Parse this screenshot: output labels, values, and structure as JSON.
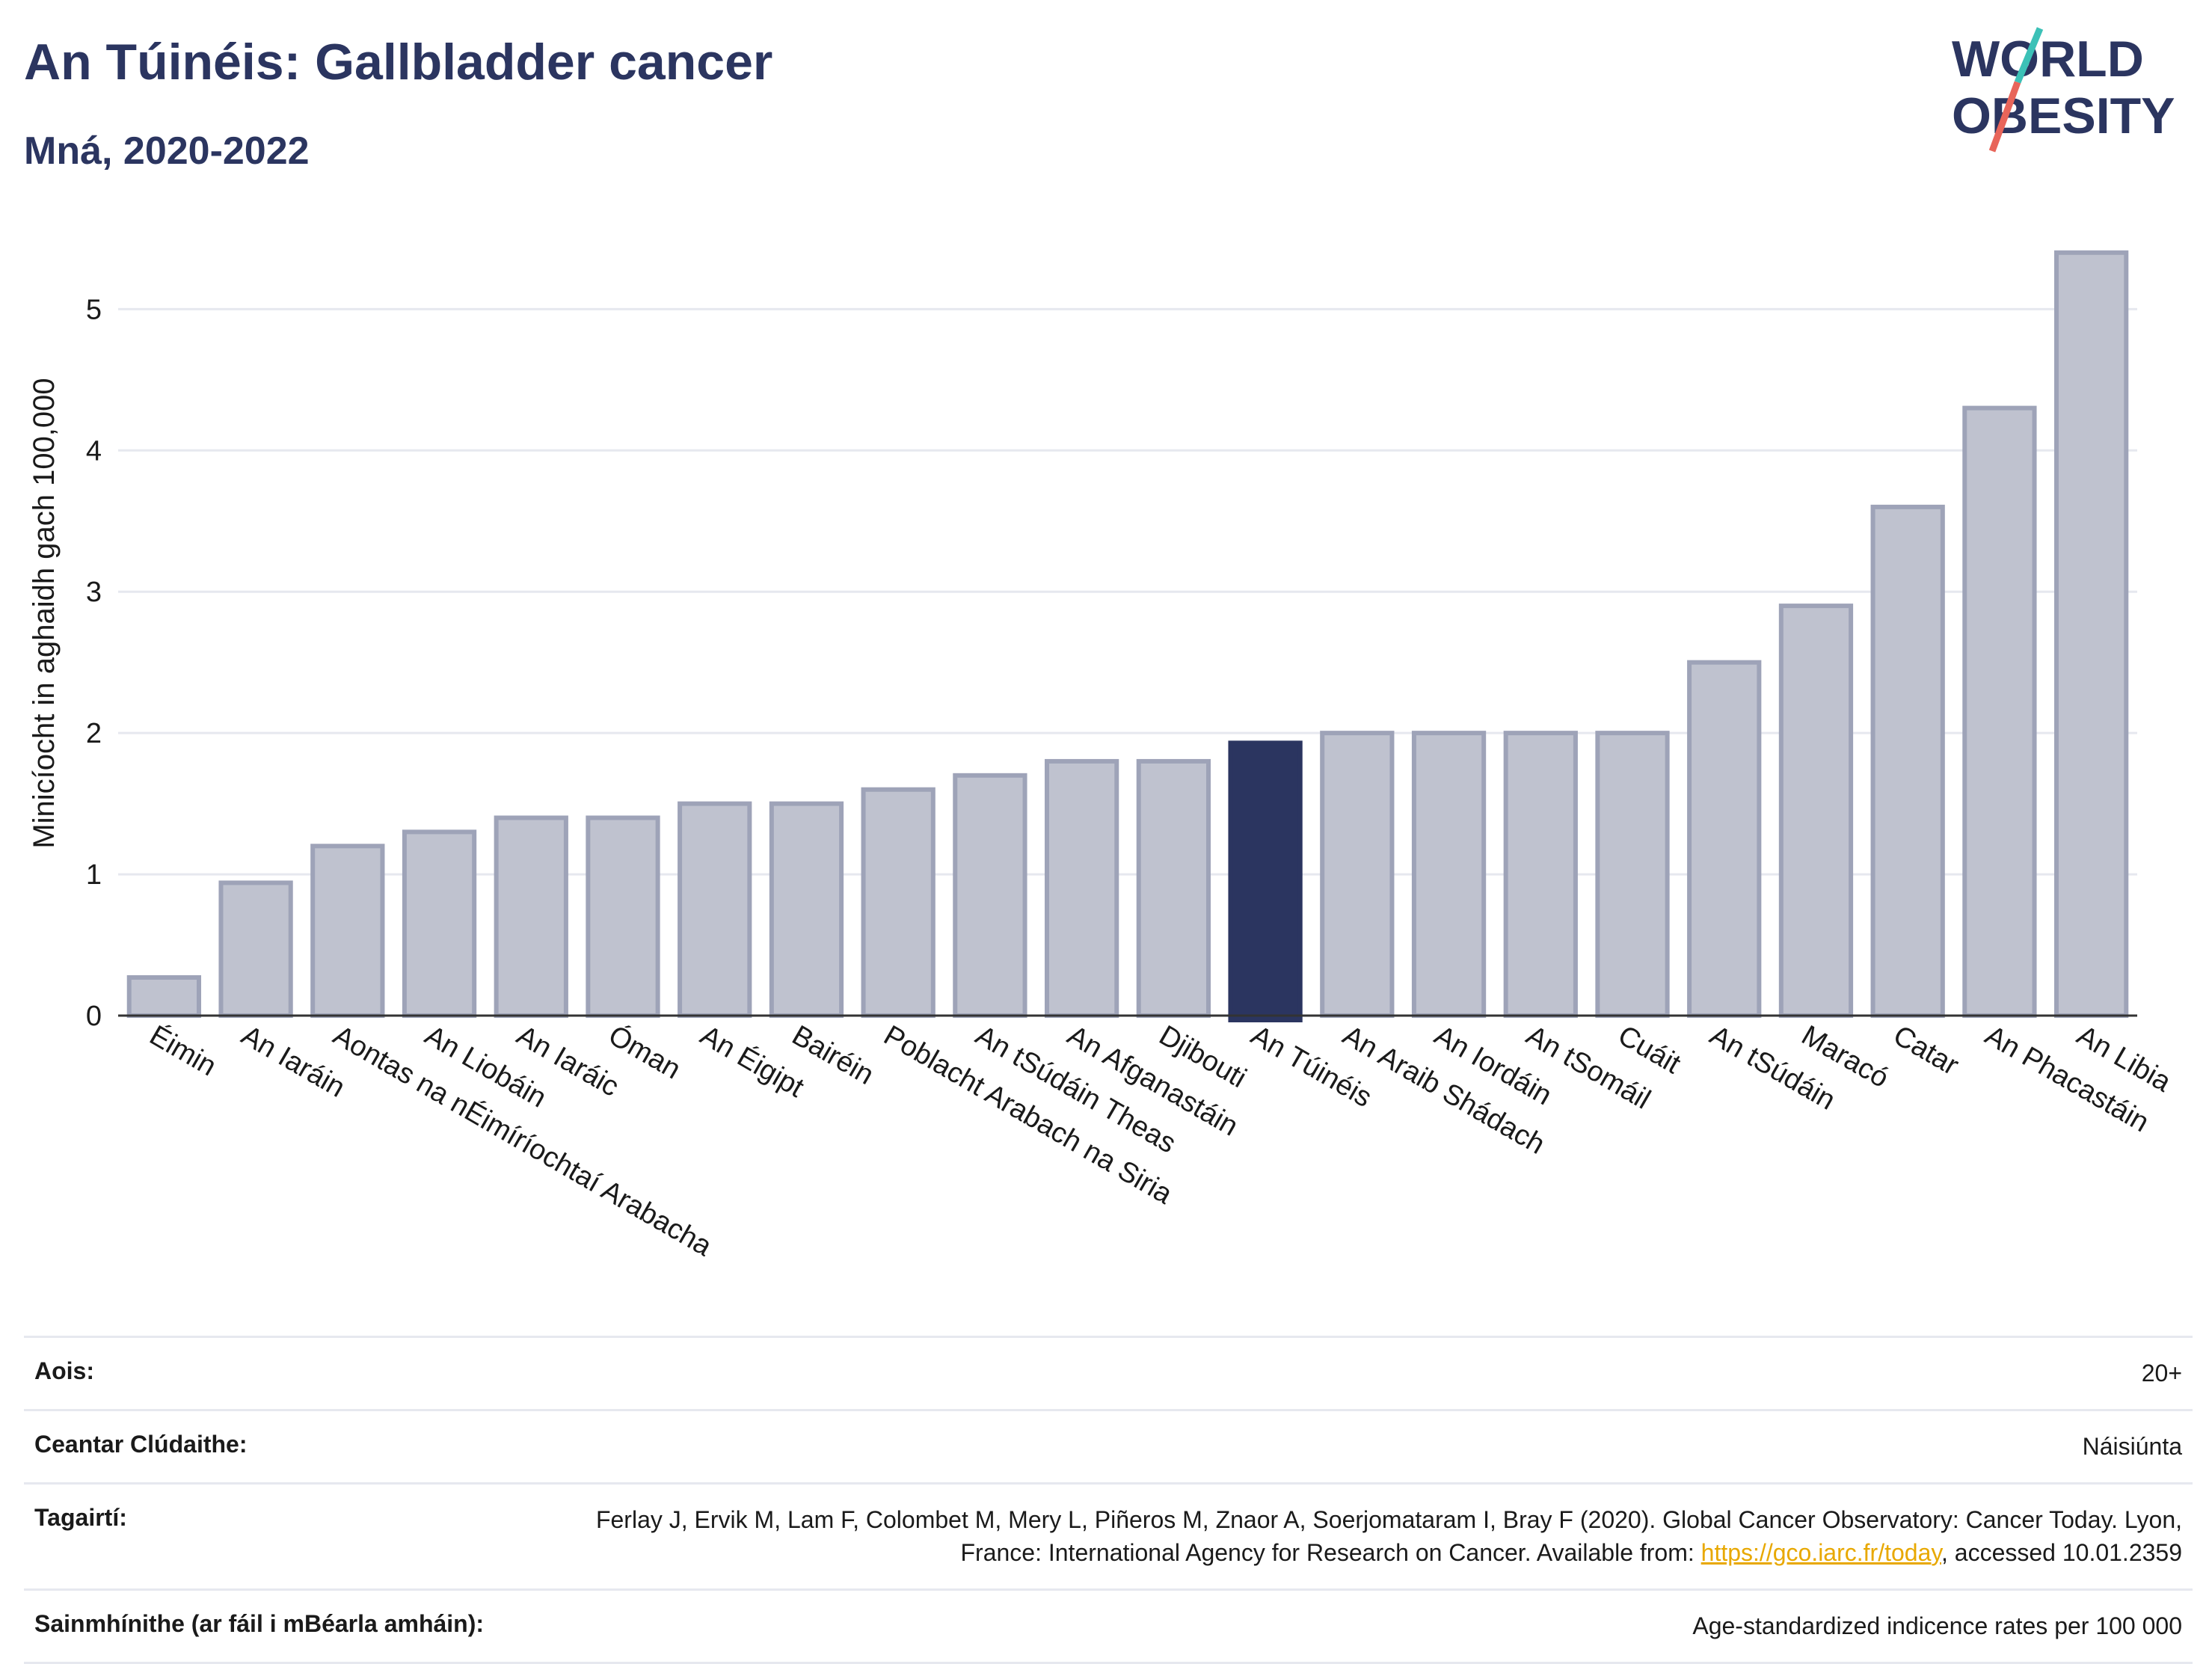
{
  "header": {
    "title": "An Túinéis: Gallbladder cancer",
    "subtitle": "Mná, 2020-2022"
  },
  "logo": {
    "line1": "WORLD",
    "line2": "OBESITY"
  },
  "colors": {
    "bar": "#bfc2cf",
    "bar_border": "#9ea3b8",
    "highlight": "#2b3560",
    "grid": "#e6e8ef",
    "axis": "#333333"
  },
  "chart_data": {
    "type": "bar",
    "ylabel": "Minicíocht in aghaidh gach 100,000",
    "ylim": [
      0,
      5.6
    ],
    "yticks": [
      0,
      1,
      2,
      3,
      4,
      5
    ],
    "highlight": "An Túinéis",
    "categories": [
      "Éimin",
      "An Iaráin",
      "Aontas na nÉimíríochtaí Arabacha",
      "An Liobáin",
      "An Iaráic",
      "Óman",
      "An Éigipt",
      "Bairéin",
      "Poblacht Arabach na Siria",
      "An tSúdáin Theas",
      "An Afganastáin",
      "Djibouti",
      "An Túinéis",
      "An Araib Shádach",
      "An Iordáin",
      "An tSomáil",
      "Cuáit",
      "An tSúdáin",
      "Maracó",
      "Catar",
      "An Phacastáin",
      "An Libia"
    ],
    "values": [
      0.27,
      0.94,
      1.2,
      1.3,
      1.4,
      1.4,
      1.5,
      1.5,
      1.6,
      1.7,
      1.8,
      1.8,
      1.93,
      2.0,
      2.0,
      2.0,
      2.0,
      2.5,
      2.9,
      3.6,
      4.3,
      5.4
    ]
  },
  "meta": {
    "age_label": "Aois:",
    "age_value": "20+",
    "area_label": "Ceantar Clúdaithe:",
    "area_value": "Náisiúnta",
    "refs_label": "Tagairtí:",
    "refs_text_1": "Ferlay J, Ervik M, Lam F, Colombet M, Mery L, Piñeros M, Znaor A, Soerjomataram I, Bray F (2020). Global Cancer Observatory: Cancer Today. Lyon, France: International Agency for Research on Cancer. Available from: ",
    "refs_link": "https://gco.iarc.fr/today",
    "refs_text_2": ", accessed 10.01.2359",
    "def_label": "Sainmhínithe (ar fáil i mBéarla amháin):",
    "def_value": "Age-standardized indicence rates per 100 000"
  }
}
